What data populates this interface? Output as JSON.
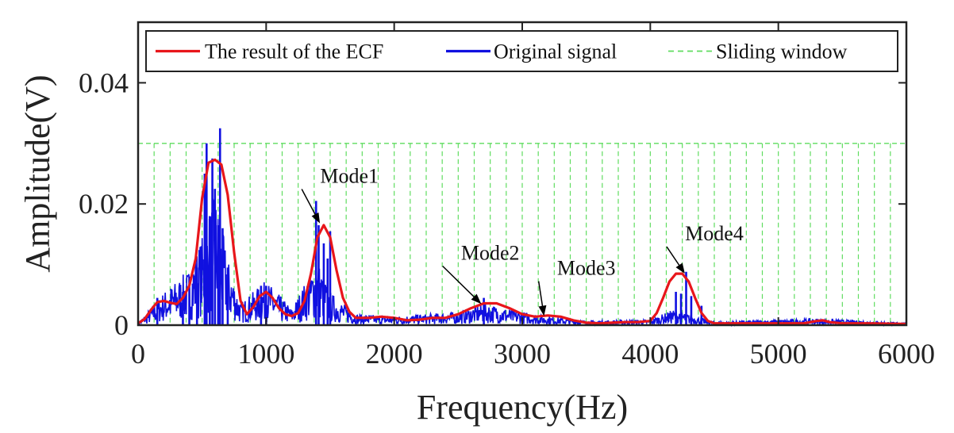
{
  "chart_data": {
    "type": "line",
    "title": "",
    "xlabel": "Frequency(Hz)",
    "ylabel": "Amplitude(V)",
    "xlim": [
      0,
      6000
    ],
    "ylim": [
      0,
      0.05
    ],
    "xticks": [
      0,
      1000,
      2000,
      3000,
      4000,
      5000,
      6000
    ],
    "xtick_labels": [
      "0",
      "1000",
      "2000",
      "3000",
      "4000",
      "5000",
      "6000"
    ],
    "yticks": [
      0,
      0.02,
      0.04
    ],
    "ytick_labels": [
      "0",
      "0.02",
      "0.04"
    ],
    "grid": false,
    "legend": {
      "position": "top",
      "entries": [
        {
          "label": "The result of the ECF",
          "color": "#e8161b",
          "style": "solid"
        },
        {
          "label": "Original signal",
          "color": "#1010e0",
          "style": "solid"
        },
        {
          "label": "Sliding window",
          "color": "#5fdc5f",
          "style": "dashed"
        }
      ]
    },
    "series": [
      {
        "name": "The result of the ECF",
        "color": "#e8161b",
        "x": [
          0,
          50,
          100,
          150,
          200,
          250,
          300,
          350,
          400,
          450,
          500,
          550,
          600,
          650,
          700,
          750,
          800,
          850,
          900,
          950,
          1000,
          1050,
          1100,
          1150,
          1200,
          1250,
          1300,
          1350,
          1400,
          1450,
          1500,
          1550,
          1600,
          1650,
          1700,
          1800,
          1900,
          2000,
          2100,
          2200,
          2300,
          2400,
          2500,
          2600,
          2700,
          2800,
          2900,
          3000,
          3100,
          3200,
          3300,
          3400,
          3500,
          3600,
          3700,
          3800,
          3900,
          4000,
          4050,
          4100,
          4150,
          4200,
          4250,
          4300,
          4350,
          4400,
          4450,
          4500,
          4600,
          4800,
          5000,
          5200,
          5300,
          5350,
          5400,
          5500,
          5700,
          6000
        ],
        "y": [
          0.0003,
          0.001,
          0.0025,
          0.0038,
          0.004,
          0.0037,
          0.0035,
          0.0045,
          0.0065,
          0.011,
          0.021,
          0.0268,
          0.0273,
          0.0265,
          0.0215,
          0.012,
          0.004,
          0.0018,
          0.003,
          0.0048,
          0.0055,
          0.0045,
          0.0028,
          0.0018,
          0.0015,
          0.002,
          0.004,
          0.0085,
          0.0145,
          0.0165,
          0.0145,
          0.009,
          0.0045,
          0.0022,
          0.0012,
          0.0012,
          0.0014,
          0.0012,
          0.0008,
          0.0009,
          0.0012,
          0.0012,
          0.0018,
          0.0028,
          0.0036,
          0.0036,
          0.0028,
          0.0018,
          0.0014,
          0.0016,
          0.0014,
          0.0008,
          0.0004,
          0.0003,
          0.0004,
          0.0005,
          0.0005,
          0.0007,
          0.002,
          0.0045,
          0.0072,
          0.0085,
          0.0085,
          0.0072,
          0.0045,
          0.002,
          0.0007,
          0.0003,
          0.0003,
          0.0003,
          0.0003,
          0.0003,
          0.0007,
          0.0008,
          0.0005,
          0.0003,
          0.0003,
          0.0002
        ]
      },
      {
        "name": "Original signal",
        "color": "#1010e0",
        "description": "dense noisy spectrum; dominant spikes listed",
        "baseline": [
          [
            0,
            0.0002
          ],
          [
            200,
            0.003
          ],
          [
            400,
            0.005
          ],
          [
            500,
            0.008
          ],
          [
            600,
            0.012
          ],
          [
            700,
            0.006
          ],
          [
            800,
            0.002
          ],
          [
            1000,
            0.004
          ],
          [
            1200,
            0.0015
          ],
          [
            1400,
            0.006
          ],
          [
            1500,
            0.003
          ],
          [
            1700,
            0.001
          ],
          [
            2000,
            0.0008
          ],
          [
            2500,
            0.0012
          ],
          [
            2700,
            0.002
          ],
          [
            3000,
            0.0012
          ],
          [
            3200,
            0.0008
          ],
          [
            3500,
            0.0004
          ],
          [
            4000,
            0.0005
          ],
          [
            4200,
            0.0015
          ],
          [
            4300,
            0.001
          ],
          [
            4500,
            0.0003
          ],
          [
            5300,
            0.0006
          ],
          [
            6000,
            0.0002
          ]
        ],
        "peaks": [
          [
            150,
            0.0045
          ],
          [
            350,
            0.0055
          ],
          [
            400,
            0.008
          ],
          [
            460,
            0.0095
          ],
          [
            520,
            0.025
          ],
          [
            535,
            0.03
          ],
          [
            560,
            0.018
          ],
          [
            580,
            0.0275
          ],
          [
            600,
            0.0225
          ],
          [
            625,
            0.0165
          ],
          [
            640,
            0.0325
          ],
          [
            660,
            0.016
          ],
          [
            700,
            0.0095
          ],
          [
            960,
            0.0065
          ],
          [
            1000,
            0.0065
          ],
          [
            1390,
            0.0205
          ],
          [
            1410,
            0.0165
          ],
          [
            1450,
            0.0135
          ],
          [
            1480,
            0.011
          ],
          [
            1500,
            0.0155
          ],
          [
            2700,
            0.0045
          ],
          [
            4200,
            0.0055
          ],
          [
            4240,
            0.0052
          ],
          [
            4280,
            0.0088
          ],
          [
            4320,
            0.0048
          ],
          [
            4400,
            0.0032
          ]
        ]
      }
    ],
    "sliding_window": {
      "height": 0.03,
      "x_start": 0,
      "x_end": 6000,
      "step": 125
    },
    "annotations": [
      {
        "text": "Mode1",
        "point": [
          1420,
          0.0168
        ],
        "label_at": [
          1650,
          0.0235
        ]
      },
      {
        "text": "Mode2",
        "point": [
          2680,
          0.0035
        ],
        "label_at": [
          2750,
          0.0108
        ]
      },
      {
        "text": "Mode3",
        "point": [
          3170,
          0.0015
        ],
        "label_at": [
          3500,
          0.0083
        ]
      },
      {
        "text": "Mode4",
        "point": [
          4270,
          0.0085
        ],
        "label_at": [
          4500,
          0.014
        ]
      }
    ]
  }
}
